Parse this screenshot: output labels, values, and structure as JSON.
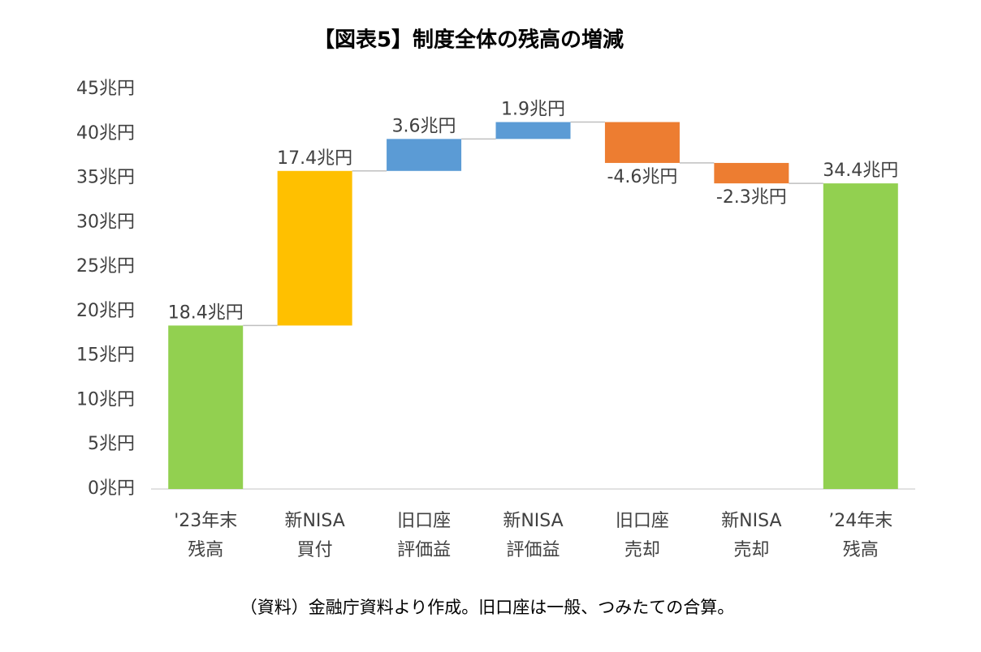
{
  "chart_data": {
    "type": "waterfall",
    "title": "【図表5】制度全体の残高の増減",
    "footnote": "（資料）金融庁資料より作成。旧口座は一般、つみたての合算。",
    "categories": [
      [
        "'23年末",
        "残高"
      ],
      [
        "新NISA",
        "買付"
      ],
      [
        "旧口座",
        "評価益"
      ],
      [
        "新NISA",
        "評価益"
      ],
      [
        "旧口座",
        "売却"
      ],
      [
        "新NISA",
        "売却"
      ],
      [
        "’24年末",
        "残高"
      ]
    ],
    "values": [
      18.4,
      17.4,
      3.6,
      1.9,
      -4.6,
      -2.3,
      34.4
    ],
    "value_labels": [
      "18.4兆円",
      "17.4兆円",
      "3.6兆円",
      "1.9兆円",
      "-4.6兆円",
      "-2.3兆円",
      "34.4兆円"
    ],
    "is_total": [
      true,
      false,
      false,
      false,
      false,
      false,
      true
    ],
    "colors": [
      "#92d050",
      "#ffc000",
      "#5b9bd5",
      "#5b9bd5",
      "#ed7d31",
      "#ed7d31",
      "#92d050"
    ],
    "ylim": [
      0,
      45
    ],
    "yticks": [
      {
        "value": 0,
        "label": "0兆円"
      },
      {
        "value": 5,
        "label": "5兆円"
      },
      {
        "value": 10,
        "label": "10兆円"
      },
      {
        "value": 15,
        "label": "15兆円"
      },
      {
        "value": 20,
        "label": "20兆円"
      },
      {
        "value": 25,
        "label": "25兆円"
      },
      {
        "value": 30,
        "label": "30兆円"
      },
      {
        "value": 35,
        "label": "35兆円"
      },
      {
        "value": 40,
        "label": "40兆円"
      },
      {
        "value": 45,
        "label": "45兆円"
      }
    ],
    "grid": false
  }
}
